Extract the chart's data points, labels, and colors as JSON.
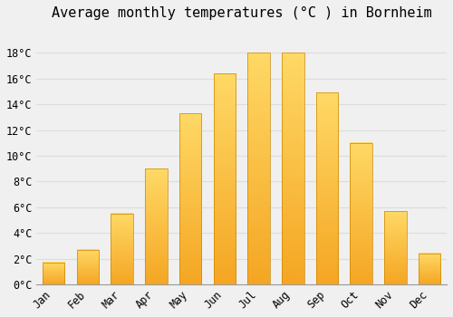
{
  "title": "Average monthly temperatures (°C ) in Bornheim",
  "months": [
    "Jan",
    "Feb",
    "Mar",
    "Apr",
    "May",
    "Jun",
    "Jul",
    "Aug",
    "Sep",
    "Oct",
    "Nov",
    "Dec"
  ],
  "values": [
    1.7,
    2.7,
    5.5,
    9.0,
    13.3,
    16.4,
    18.0,
    18.0,
    14.9,
    11.0,
    5.7,
    2.4
  ],
  "bar_color_bottom": "#F5A623",
  "bar_color_top": "#FFD966",
  "bar_edge_color": "#CC8800",
  "background_color": "#F0F0F0",
  "grid_color": "#DDDDDD",
  "ylim": [
    0,
    20
  ],
  "yticks": [
    0,
    2,
    4,
    6,
    8,
    10,
    12,
    14,
    16,
    18
  ],
  "title_fontsize": 11,
  "tick_fontsize": 8.5,
  "bar_width": 0.65
}
